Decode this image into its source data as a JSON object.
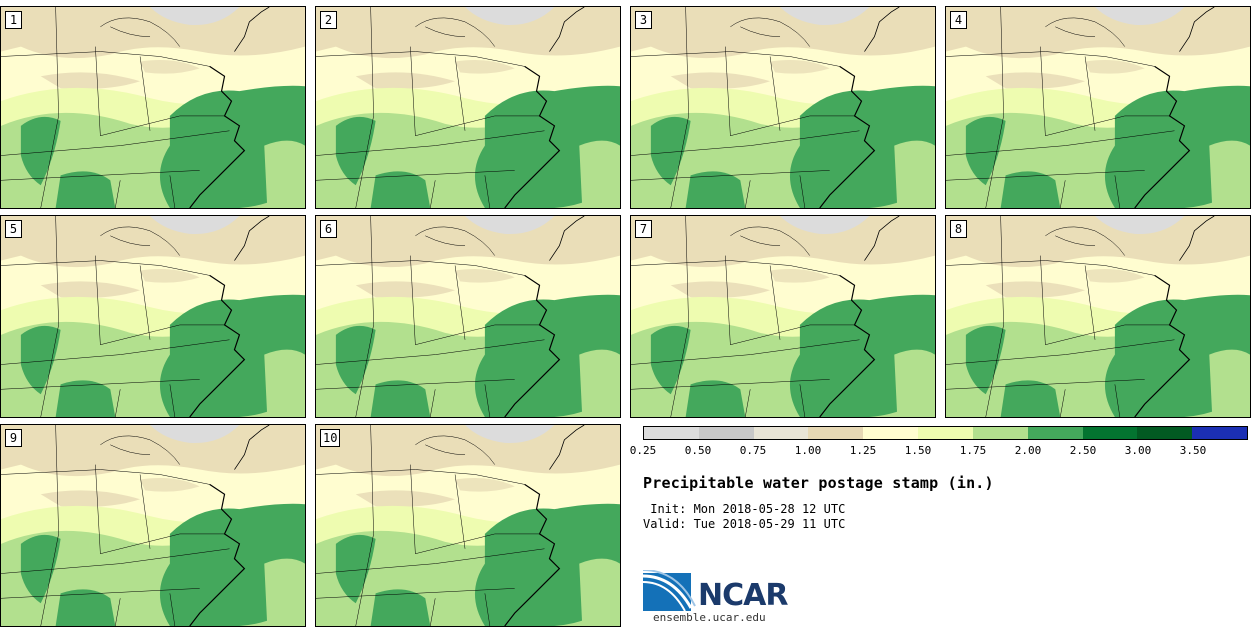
{
  "stamps": [
    {
      "label": "1"
    },
    {
      "label": "2"
    },
    {
      "label": "3"
    },
    {
      "label": "4"
    },
    {
      "label": "5"
    },
    {
      "label": "6"
    },
    {
      "label": "7"
    },
    {
      "label": "8"
    },
    {
      "label": "9"
    },
    {
      "label": "10"
    }
  ],
  "colorbar": {
    "colors": [
      "#dcdcdc",
      "#c8c8c8",
      "#e8e4d6",
      "#e6d8b4",
      "#fffdd0",
      "#eefcb0",
      "#b2e08e",
      "#44a85c",
      "#037430",
      "#025a22",
      "#1b2fb4"
    ],
    "ticks": [
      "0.25",
      "0.50",
      "0.75",
      "1.00",
      "1.25",
      "1.50",
      "1.75",
      "2.00",
      "2.50",
      "3.00",
      "3.50"
    ]
  },
  "title": "Precipitable water postage stamp (in.)",
  "init_text": " Init: Mon 2018-05-28 12 UTC",
  "valid_text": "Valid: Tue 2018-05-29 11 UTC",
  "logo": {
    "name": "NCAR",
    "url": "ensemble.ucar.edu"
  }
}
